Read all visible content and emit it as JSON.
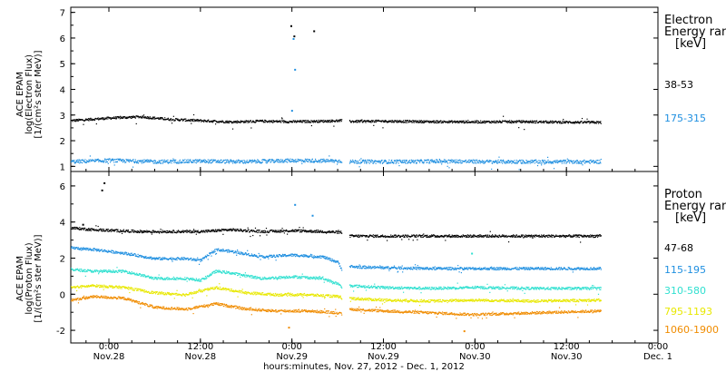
{
  "chart_data": {
    "type": "scatter",
    "xlabel": "hours:minutes, Nov. 27, 2012 - Dec. 1, 2012",
    "x_ticks": [
      {
        "time": "0:00",
        "date": "Nov.28",
        "t": 24
      },
      {
        "time": "12:00",
        "date": "Nov.28",
        "t": 36
      },
      {
        "time": "0:00",
        "date": "Nov.29",
        "t": 48
      },
      {
        "time": "12:00",
        "date": "Nov.29",
        "t": 60
      },
      {
        "time": "0:00",
        "date": "Nov.30",
        "t": 72
      },
      {
        "time": "12:00",
        "date": "Nov.30",
        "t": 84
      },
      {
        "time": "0:00",
        "date": "Dec. 1",
        "t": 96
      }
    ],
    "xlim": [
      19,
      96
    ],
    "data_gap_hours": [
      54.5,
      55.5
    ],
    "panels": [
      {
        "id": "electron",
        "ylabel": [
          "ACE EPAM",
          "log(Electron Flux)",
          "[1/(cm²s ster MeV)]"
        ],
        "ylim": [
          0.8,
          7.2
        ],
        "yticks": [
          1,
          2,
          3,
          4,
          5,
          6,
          7
        ],
        "legend_title": [
          "Electron",
          "Energy ran",
          "[keV]"
        ],
        "series": [
          {
            "name": "38-53",
            "color": "#000000",
            "points": [
              [
                19,
                2.8
              ],
              [
                24,
                2.9
              ],
              [
                28,
                2.95
              ],
              [
                32,
                2.85
              ],
              [
                36,
                2.8
              ],
              [
                40,
                2.75
              ],
              [
                44,
                2.78
              ],
              [
                48,
                2.76
              ],
              [
                52,
                2.78
              ],
              [
                54.5,
                2.8
              ],
              [
                55.5,
                2.77
              ],
              [
                60,
                2.78
              ],
              [
                66,
                2.76
              ],
              [
                72,
                2.75
              ],
              [
                78,
                2.76
              ],
              [
                84,
                2.74
              ],
              [
                88.5,
                2.73
              ]
            ],
            "spikes": [
              [
                47.8,
                6.5
              ],
              [
                48.2,
                6.1
              ],
              [
                50.8,
                6.3
              ]
            ]
          },
          {
            "name": "175-315",
            "color": "#1f8fe0",
            "points": [
              [
                19,
                1.2
              ],
              [
                24,
                1.25
              ],
              [
                30,
                1.2
              ],
              [
                36,
                1.22
              ],
              [
                42,
                1.2
              ],
              [
                48,
                1.25
              ],
              [
                54.5,
                1.23
              ],
              [
                55.5,
                1.2
              ],
              [
                62,
                1.2
              ],
              [
                68,
                1.22
              ],
              [
                74,
                1.2
              ],
              [
                80,
                1.2
              ],
              [
                88.5,
                1.2
              ]
            ],
            "spikes": [
              [
                48.1,
                6.0
              ],
              [
                48.3,
                4.8
              ],
              [
                47.9,
                3.2
              ]
            ]
          }
        ]
      },
      {
        "id": "proton",
        "ylabel": [
          "ACE EPAM",
          "log(Proton Flux)",
          "[1/(cm²s ster MeV)]"
        ],
        "ylim": [
          -2.7,
          6.8
        ],
        "yticks": [
          -2,
          0,
          2,
          4,
          6
        ],
        "legend_title": [
          "Proton",
          "Energy ran",
          "[keV]"
        ],
        "series": [
          {
            "name": "47-68",
            "color": "#000000",
            "points": [
              [
                19,
                3.7
              ],
              [
                22,
                3.6
              ],
              [
                28,
                3.5
              ],
              [
                36,
                3.5
              ],
              [
                40,
                3.6
              ],
              [
                44,
                3.5
              ],
              [
                48,
                3.55
              ],
              [
                52,
                3.5
              ],
              [
                54.5,
                3.45
              ],
              [
                55.5,
                3.25
              ],
              [
                60,
                3.25
              ],
              [
                66,
                3.25
              ],
              [
                72,
                3.25
              ],
              [
                80,
                3.25
              ],
              [
                88.5,
                3.25
              ]
            ],
            "spikes": [
              [
                20.5,
                3.9
              ],
              [
                23,
                5.8
              ],
              [
                23.3,
                6.2
              ]
            ]
          },
          {
            "name": "115-195",
            "color": "#1f8fe0",
            "points": [
              [
                19,
                2.6
              ],
              [
                22,
                2.5
              ],
              [
                26,
                2.3
              ],
              [
                30,
                2.0
              ],
              [
                34,
                2.0
              ],
              [
                36,
                1.9
              ],
              [
                38,
                2.5
              ],
              [
                40,
                2.4
              ],
              [
                44,
                2.1
              ],
              [
                48,
                2.2
              ],
              [
                52,
                2.1
              ],
              [
                54,
                1.8
              ],
              [
                54.5,
                1.4
              ],
              [
                55.5,
                1.55
              ],
              [
                60,
                1.5
              ],
              [
                66,
                1.45
              ],
              [
                72,
                1.45
              ],
              [
                80,
                1.45
              ],
              [
                88.5,
                1.45
              ]
            ],
            "spikes": [
              [
                48.3,
                5.0
              ],
              [
                50.6,
                4.4
              ]
            ]
          },
          {
            "name": "310-580",
            "color": "#30e0d0",
            "points": [
              [
                19,
                1.4
              ],
              [
                22,
                1.3
              ],
              [
                26,
                1.3
              ],
              [
                30,
                0.9
              ],
              [
                34,
                0.9
              ],
              [
                36,
                0.8
              ],
              [
                38,
                1.3
              ],
              [
                40,
                1.2
              ],
              [
                44,
                0.9
              ],
              [
                48,
                1.0
              ],
              [
                52,
                0.9
              ],
              [
                54,
                0.6
              ],
              [
                54.5,
                0.4
              ],
              [
                55.5,
                0.5
              ],
              [
                60,
                0.4
              ],
              [
                66,
                0.35
              ],
              [
                72,
                0.4
              ],
              [
                80,
                0.35
              ],
              [
                88.5,
                0.35
              ]
            ],
            "spikes": [
              [
                71.5,
                2.3
              ]
            ]
          },
          {
            "name": "795-1193",
            "color": "#e8e800",
            "points": [
              [
                19,
                0.4
              ],
              [
                22,
                0.5
              ],
              [
                26,
                0.4
              ],
              [
                30,
                0.1
              ],
              [
                34,
                0.0
              ],
              [
                38,
                0.4
              ],
              [
                42,
                0.1
              ],
              [
                46,
                0.0
              ],
              [
                50,
                0.0
              ],
              [
                54,
                -0.1
              ],
              [
                54.5,
                -0.2
              ],
              [
                55.5,
                -0.2
              ],
              [
                60,
                -0.3
              ],
              [
                66,
                -0.35
              ],
              [
                72,
                -0.3
              ],
              [
                80,
                -0.35
              ],
              [
                88.5,
                -0.3
              ]
            ],
            "spikes": []
          },
          {
            "name": "1060-1900",
            "color": "#f08c00",
            "points": [
              [
                19,
                -0.3
              ],
              [
                22,
                -0.1
              ],
              [
                26,
                -0.2
              ],
              [
                30,
                -0.7
              ],
              [
                34,
                -0.8
              ],
              [
                38,
                -0.5
              ],
              [
                42,
                -0.8
              ],
              [
                46,
                -0.9
              ],
              [
                50,
                -0.9
              ],
              [
                54,
                -1.0
              ],
              [
                54.5,
                -1.1
              ],
              [
                55.5,
                -0.8
              ],
              [
                60,
                -0.9
              ],
              [
                66,
                -1.0
              ],
              [
                72,
                -1.1
              ],
              [
                80,
                -1.0
              ],
              [
                88.5,
                -0.9
              ]
            ],
            "spikes": [
              [
                47.5,
                -1.8
              ],
              [
                70.5,
                -2.0
              ]
            ]
          }
        ]
      }
    ]
  }
}
